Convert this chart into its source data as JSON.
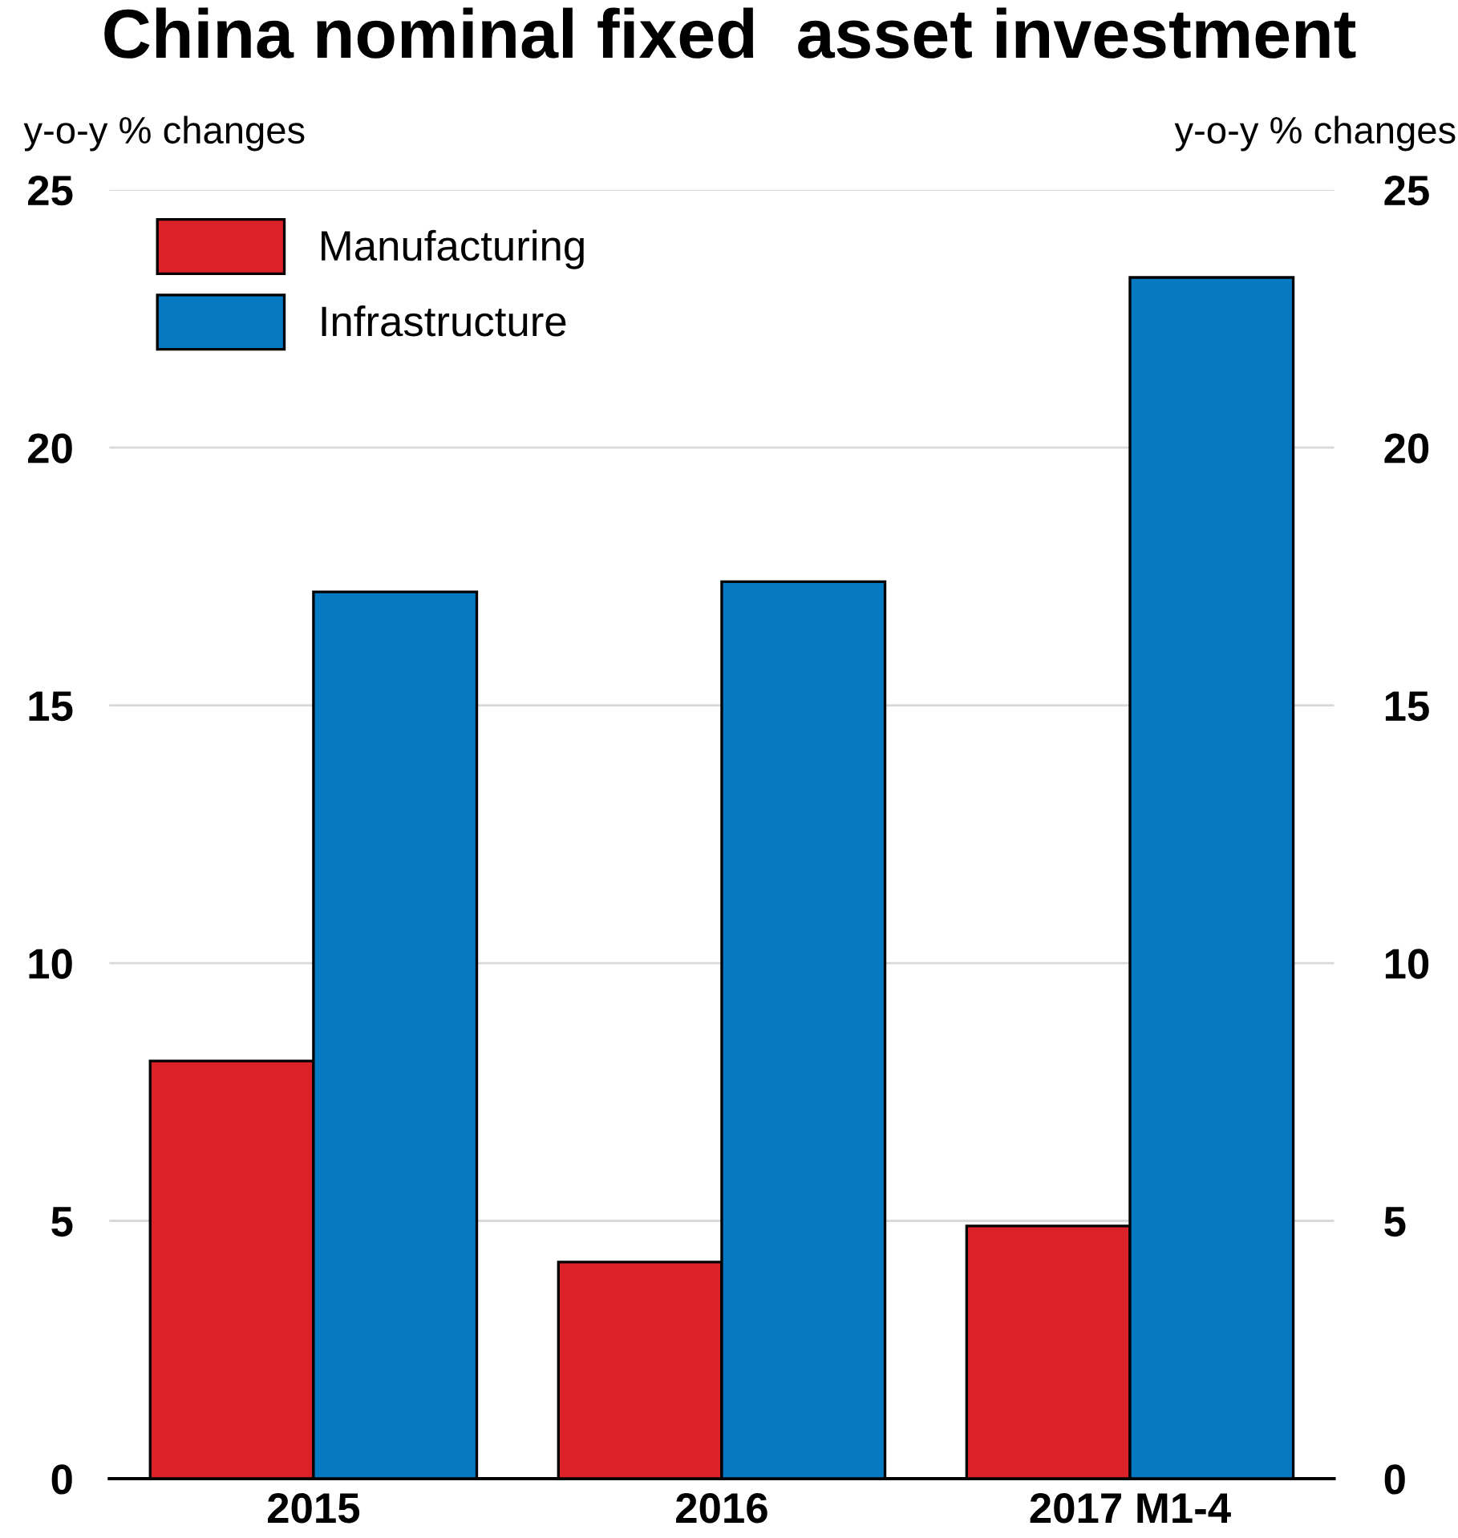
{
  "chart_data": {
    "type": "bar",
    "title": "China nominal fixed  asset investment",
    "ylabel": "y-o-y % changes",
    "y2label": "y-o-y % changes",
    "categories": [
      "2015",
      "2016",
      "2017 M1-4"
    ],
    "series": [
      {
        "name": "Manufacturing",
        "color": "#dc2229",
        "values": [
          8.1,
          4.2,
          4.9
        ]
      },
      {
        "name": "Infrastructure",
        "color": "#0579c2",
        "values": [
          17.2,
          17.4,
          23.3
        ]
      }
    ],
    "ylim": [
      0,
      25
    ],
    "yticks": [
      0,
      5,
      10,
      15,
      20,
      25
    ],
    "y2lim": [
      0,
      25
    ],
    "y2ticks": [
      0,
      5,
      10,
      15,
      20,
      25
    ],
    "grid": "y",
    "legend": "top left"
  }
}
